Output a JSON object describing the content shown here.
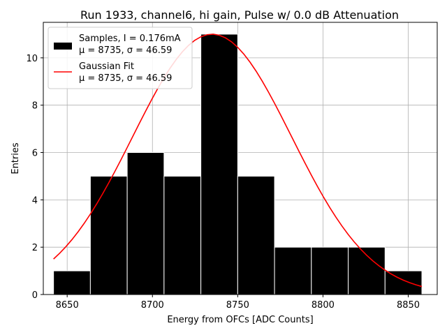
{
  "chart_data": {
    "type": "bar",
    "title": "Run 1933, channel6, hi gain, Pulse w/ 0.0 dB Attenuation",
    "xlabel": "Energy from OFCs [ADC Counts]",
    "ylabel": "Entries",
    "xlim": [
      8636,
      8867
    ],
    "ylim": [
      0,
      11.5
    ],
    "xticks": [
      8650,
      8700,
      8750,
      8800,
      8850
    ],
    "yticks": [
      0,
      2,
      4,
      6,
      8,
      10
    ],
    "grid": true,
    "legend_position": "top-left",
    "histogram": {
      "name": "Samples, I = 0.176mA",
      "stats": "μ = 8735, σ = 46.59",
      "color": "#000000",
      "edge_color": "#ffffff",
      "bin_edges": [
        8642,
        8663.6,
        8685.2,
        8706.8,
        8728.4,
        8750,
        8771.6,
        8793.2,
        8814.8,
        8836.4,
        8858
      ],
      "counts": [
        1,
        5,
        6,
        5,
        11,
        5,
        2,
        2,
        2,
        1
      ]
    },
    "fit": {
      "name": "Gaussian Fit",
      "stats": "μ = 8735, σ = 46.59",
      "color": "#ff0000",
      "type": "gaussian",
      "amplitude": 11.0,
      "mu": 8735,
      "sigma": 46.59,
      "x_range": [
        8642,
        8858
      ]
    }
  }
}
